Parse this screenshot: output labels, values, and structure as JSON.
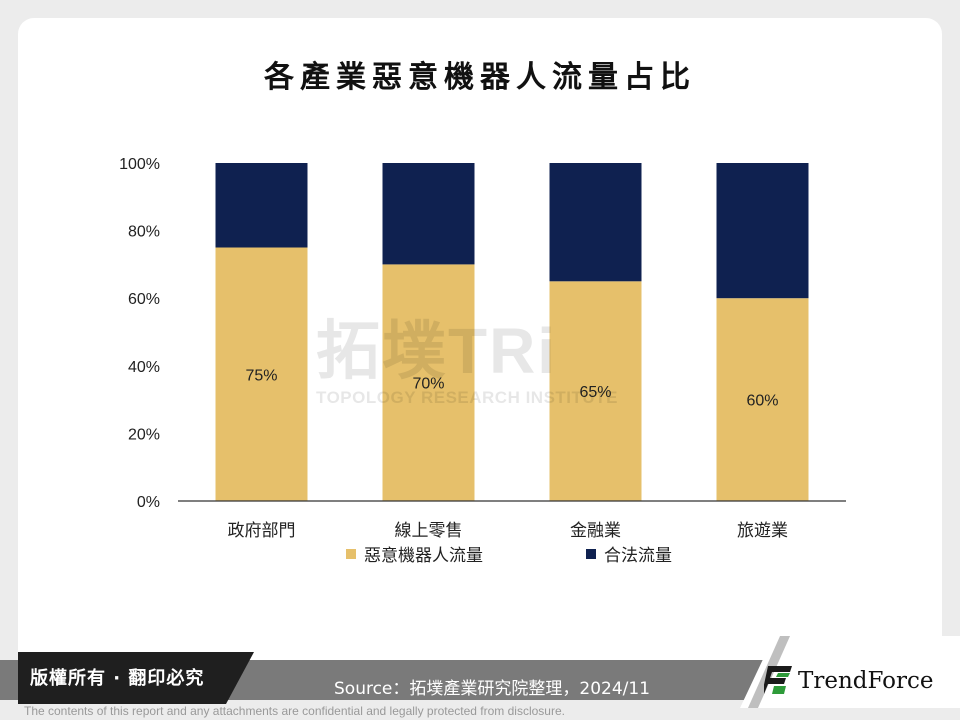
{
  "chart_data": {
    "type": "bar",
    "stacked": true,
    "title": "各產業惡意機器人流量占比",
    "categories": [
      "政府部門",
      "線上零售",
      "金融業",
      "旅遊業"
    ],
    "series": [
      {
        "name": "惡意機器人流量",
        "values": [
          75,
          70,
          65,
          60
        ],
        "color": "#e6c06b",
        "data_labels": [
          "75%",
          "70%",
          "65%",
          "60%"
        ]
      },
      {
        "name": "合法流量",
        "values": [
          25,
          30,
          35,
          40
        ],
        "color": "#0f2150"
      }
    ],
    "ylim": [
      0,
      100
    ],
    "yticks": [
      0,
      20,
      40,
      60,
      80,
      100
    ],
    "ytick_labels": [
      "0%",
      "20%",
      "40%",
      "60%",
      "80%",
      "100%"
    ],
    "xlabel": "",
    "ylabel": "",
    "legend": "bottom",
    "grid": false
  },
  "watermark": {
    "text": "拓墣TRi",
    "subtext": "TOPOLOGY RESEARCH INSTITUTE"
  },
  "footer": {
    "copyright": "版權所有 · 翻印必究",
    "source": "Source：拓墣產業研究院整理，2024/11",
    "brand": "TrendForce",
    "disclaimer": "The contents of this report and any attachments are confidential and legally protected from disclosure."
  }
}
